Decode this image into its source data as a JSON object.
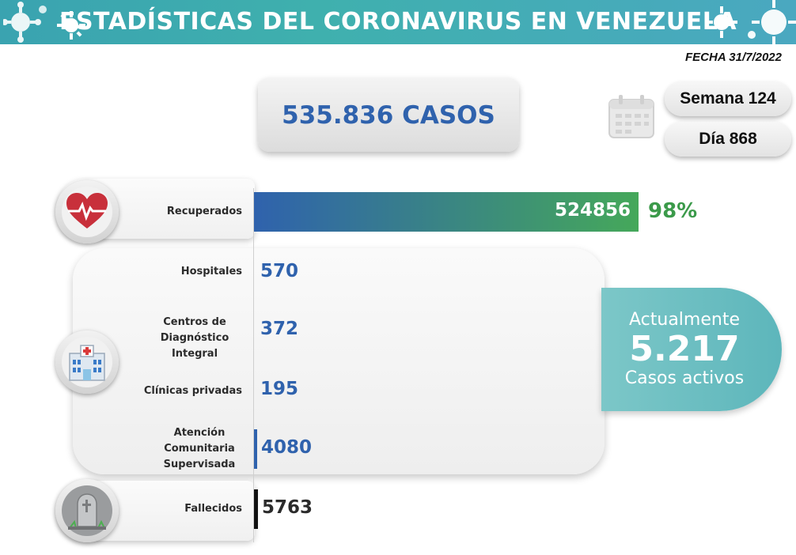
{
  "header": {
    "title": "ESTADÍSTICAS DEL CORONAVIRUS EN VENEZUELA",
    "date": "FECHA 31/7/2022"
  },
  "summary": {
    "total_cases": "535.836 CASOS",
    "week": "Semana 124",
    "day": "Día 868"
  },
  "active": {
    "line1": "Actualmente",
    "count": "5.217",
    "line2": "Casos activos"
  },
  "icons": {
    "header_left": "virus-icon",
    "header_right": "virus-icon",
    "calendar": "calendar-icon",
    "recovered": "heart-pulse-icon",
    "hospital": "hospital-icon",
    "deceased": "tombstone-icon"
  },
  "colors": {
    "banner": "#3fb0ae",
    "recovered_bar_start": "#2f62ad",
    "recovered_bar_end": "#45a85a",
    "value_blue": "#2f62ad",
    "percent_green": "#3b9a4a",
    "deceased_black": "#111111",
    "active_teal": "#6bbfc2"
  },
  "chart_data": {
    "type": "bar",
    "orientation": "horizontal",
    "categories": [
      "Recuperados",
      "Hospitales",
      "Centros de Diagnóstico Integral",
      "Clínicas privadas",
      "Atención Comunitaria Supervisada",
      "Fallecidos"
    ],
    "values": [
      524856,
      570,
      372,
      195,
      4080,
      5763
    ],
    "value_labels": [
      "524856",
      "570",
      "372",
      "195",
      "4080",
      "5763"
    ],
    "annotations": {
      "recovered_percent": "98%"
    },
    "total": 535836
  }
}
